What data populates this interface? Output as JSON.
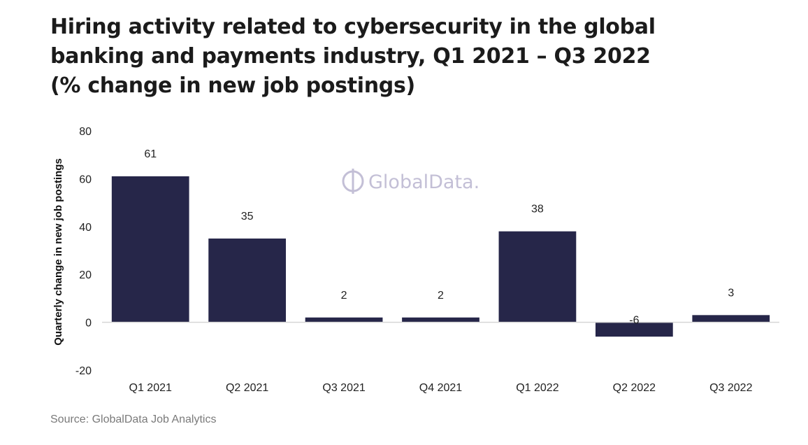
{
  "title": "Hiring activity related to cybersecurity in the global banking and payments industry, Q1 2021 – Q3 2022 (% change in new job postings)",
  "source": "Source: GlobalData Job Analytics",
  "watermark": "GlobalData.",
  "colors": {
    "bar": "#262649",
    "axis": "#d6d6d6",
    "watermark": "#c3bfd6"
  },
  "chart_data": {
    "type": "bar",
    "categories": [
      "Q1 2021",
      "Q2 2021",
      "Q3 2021",
      "Q4 2021",
      "Q1 2022",
      "Q2 2022",
      "Q3 2022"
    ],
    "values": [
      61,
      35,
      2,
      2,
      38,
      -6,
      3
    ],
    "ylabel": "Quarterly change in new job postings",
    "xlabel": "",
    "ylim": [
      -20,
      80
    ],
    "yticks": [
      80,
      60,
      40,
      20,
      0,
      -20
    ],
    "grid": false,
    "legend": "none"
  }
}
